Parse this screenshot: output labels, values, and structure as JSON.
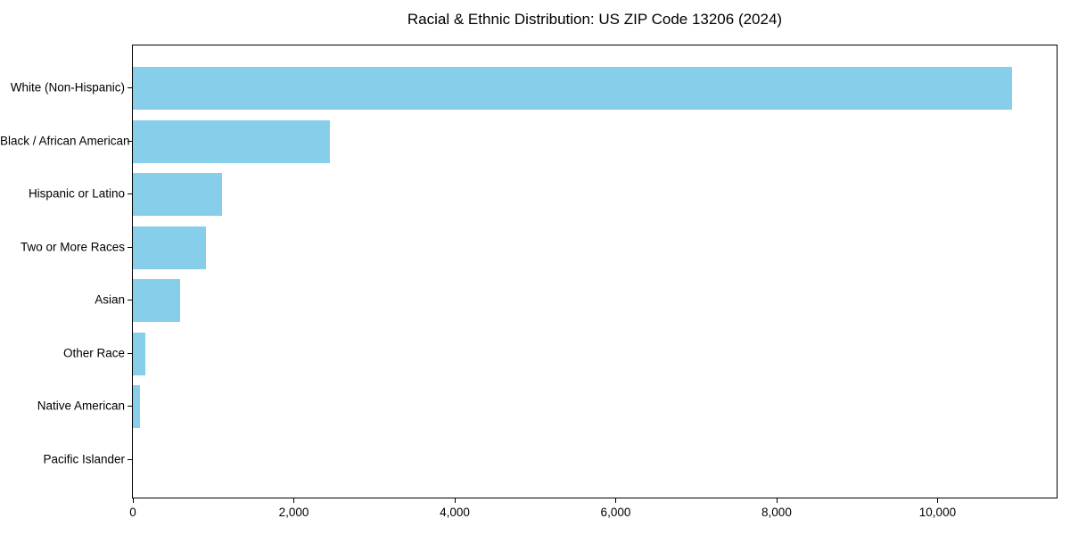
{
  "chart_data": {
    "type": "bar",
    "orientation": "horizontal",
    "title": "Racial & Ethnic Distribution: US ZIP Code 13206 (2024)",
    "categories": [
      "White (Non-Hispanic)",
      "Black / African American",
      "Hispanic or Latino",
      "Two or More Races",
      "Asian",
      "Other Race",
      "Native American",
      "Pacific Islander"
    ],
    "values": [
      10930,
      2450,
      1110,
      910,
      590,
      160,
      90,
      0
    ],
    "xlabel": "",
    "ylabel": "",
    "xlim": [
      0,
      11480
    ],
    "xticks": {
      "values": [
        0,
        2000,
        4000,
        6000,
        8000,
        10000
      ],
      "labels": [
        "0",
        "2,000",
        "4,000",
        "6,000",
        "8,000",
        "10,000"
      ]
    },
    "grid": false,
    "legend": "none",
    "colors": {
      "bar": "#87CEEB",
      "axis": "#000000",
      "text": "#000000",
      "background": "#ffffff"
    }
  }
}
